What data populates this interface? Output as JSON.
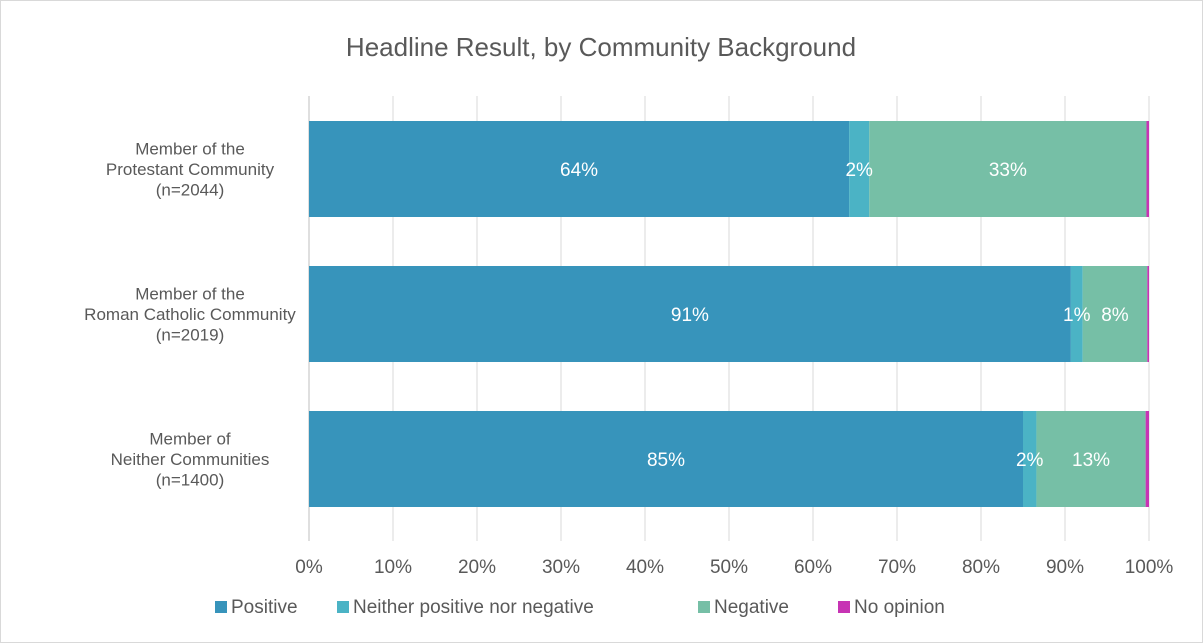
{
  "chart_data": {
    "type": "bar",
    "orientation": "horizontal",
    "stacked": "percent",
    "title": "Headline Result, by Community Background",
    "categories": [
      [
        "Member of the",
        "Protestant Community",
        "(n=2044)"
      ],
      [
        "Member of the",
        "Roman Catholic Community",
        "(n=2019)"
      ],
      [
        "Member of",
        "Neither Communities",
        "(n=1400)"
      ]
    ],
    "series": [
      {
        "name": "Positive",
        "color": "#3794bb",
        "values": [
          64.3,
          90.7,
          85.0
        ],
        "labels": [
          "64%",
          "91%",
          "85%"
        ]
      },
      {
        "name": "Neither positive nor negative",
        "color": "#4bb3c5",
        "values": [
          2.4,
          1.4,
          1.6
        ],
        "labels": [
          "2%",
          "1%",
          "2%"
        ]
      },
      {
        "name": "Negative",
        "color": "#76bfa6",
        "values": [
          33.0,
          7.7,
          13.0
        ],
        "labels": [
          "33%",
          "8%",
          "13%"
        ]
      },
      {
        "name": "No opinion",
        "color": "#c734b4",
        "values": [
          0.3,
          0.2,
          0.4
        ],
        "labels": [
          "",
          "",
          ""
        ]
      }
    ],
    "xlim": [
      0,
      100
    ],
    "ticks": [
      "0%",
      "10%",
      "20%",
      "30%",
      "40%",
      "50%",
      "60%",
      "70%",
      "80%",
      "90%",
      "100%"
    ],
    "gridlines": true,
    "legend_position": "bottom"
  }
}
